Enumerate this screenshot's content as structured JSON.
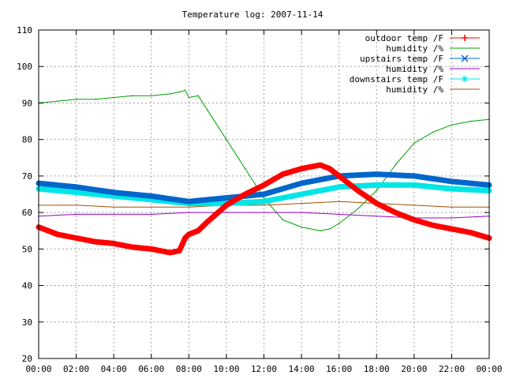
{
  "chart_data": {
    "type": "line",
    "title": "Temperature log: 2007-11-14",
    "xlabel": "",
    "ylabel": "",
    "xlim": [
      0,
      24
    ],
    "ylim": [
      20,
      110
    ],
    "x_ticks": [
      "00:00",
      "02:00",
      "04:00",
      "06:00",
      "08:00",
      "10:00",
      "12:00",
      "14:00",
      "16:00",
      "18:00",
      "20:00",
      "22:00",
      "00:00"
    ],
    "y_ticks": [
      "20",
      "30",
      "40",
      "50",
      "60",
      "70",
      "80",
      "90",
      "100",
      "110"
    ],
    "grid": true,
    "legend_position": "top-right",
    "x_unit_note": "hours of day",
    "series": [
      {
        "name": "outdoor temp /F",
        "color": "#ff0000",
        "marker": "plus",
        "x": [
          0,
          1,
          2,
          3,
          4,
          5,
          6,
          7,
          7.5,
          7.8,
          8,
          8.5,
          9,
          10,
          11,
          12,
          13,
          14,
          15,
          15.5,
          16,
          17,
          18,
          19,
          20,
          21,
          22,
          23,
          24
        ],
        "y": [
          56,
          54,
          53,
          52,
          51.5,
          50.5,
          50,
          49,
          49.5,
          53,
          54,
          55,
          57.5,
          62,
          65,
          67.5,
          70.5,
          72,
          73,
          72,
          70,
          66,
          62.5,
          60,
          58,
          56.5,
          55.5,
          54.5,
          53
        ]
      },
      {
        "name": "humidity /%",
        "color": "#00a000",
        "marker": "none",
        "x": [
          0,
          1,
          2,
          3,
          4,
          5,
          6,
          7,
          7.5,
          7.8,
          8,
          8.5,
          9,
          10,
          11,
          12,
          13,
          14,
          15,
          15.5,
          16,
          17,
          18,
          19,
          20,
          21,
          22,
          23,
          24
        ],
        "y": [
          90,
          90.5,
          91,
          91,
          91.5,
          92,
          92,
          92.5,
          93,
          93.5,
          91.5,
          92,
          88,
          80,
          72,
          64,
          58,
          56,
          55,
          55.5,
          57,
          61,
          66,
          73,
          79,
          82,
          84,
          85,
          85.5
        ]
      },
      {
        "name": "upstairs temp /F",
        "color": "#0066cc",
        "marker": "cross",
        "x": [
          0,
          2,
          4,
          6,
          8,
          10,
          12,
          14,
          16,
          18,
          20,
          22,
          24
        ],
        "y": [
          68,
          67,
          65.5,
          64.5,
          63,
          64,
          65,
          68,
          70,
          70.5,
          70,
          68.5,
          67.5
        ]
      },
      {
        "name": "humidity /%",
        "color": "#9900cc",
        "marker": "none",
        "x": [
          0,
          2,
          4,
          6,
          8,
          10,
          12,
          14,
          16,
          18,
          20,
          22,
          24
        ],
        "y": [
          59,
          59.5,
          59.5,
          59.5,
          60,
          60,
          60,
          60,
          59.5,
          59,
          58.5,
          58.5,
          59
        ]
      },
      {
        "name": "downstairs temp /F",
        "color": "#00e5e5",
        "marker": "star",
        "x": [
          0,
          2,
          4,
          6,
          8,
          10,
          12,
          14,
          16,
          18,
          20,
          22,
          24
        ],
        "y": [
          66.5,
          65.5,
          64.5,
          63.5,
          62.5,
          62.5,
          63,
          65,
          67,
          67.5,
          67.5,
          66.5,
          66
        ]
      },
      {
        "name": "humidity /%",
        "color": "#a05000",
        "marker": "none",
        "x": [
          0,
          2,
          4,
          6,
          8,
          10,
          12,
          14,
          16,
          18,
          20,
          22,
          24
        ],
        "y": [
          62,
          62,
          61.5,
          61.5,
          61.5,
          62,
          62,
          62.5,
          63,
          62.5,
          62,
          61.5,
          61.5
        ]
      }
    ]
  }
}
